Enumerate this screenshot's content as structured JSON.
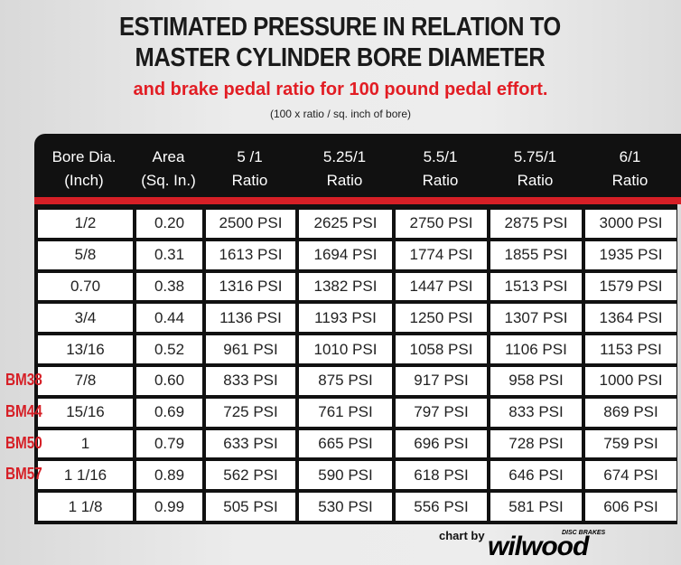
{
  "header": {
    "title_lines": [
      "ESTIMATED PRESSURE IN RELATION TO",
      "MASTER CYLINDER BORE DIAMETER"
    ],
    "subtitle": "and brake pedal ratio for 100 pound pedal effort.",
    "note": "(100 x ratio / sq. inch of bore)"
  },
  "table": {
    "columns": [
      [
        "Bore Dia.",
        "(Inch)"
      ],
      [
        "Area",
        "(Sq. In.)"
      ],
      [
        "5 /1",
        "Ratio"
      ],
      [
        "5.25/1",
        "Ratio"
      ],
      [
        "5.5/1",
        "Ratio"
      ],
      [
        "5.75/1",
        "Ratio"
      ],
      [
        "6/1",
        "Ratio"
      ]
    ],
    "rows": [
      {
        "cells": [
          "1/2",
          "0.20",
          "2500 PSI",
          "2625 PSI",
          "2750 PSI",
          "2875 PSI",
          "3000 PSI"
        ]
      },
      {
        "cells": [
          "5/8",
          "0.31",
          "1613 PSI",
          "1694 PSI",
          "1774 PSI",
          "1855 PSI",
          "1935 PSI"
        ]
      },
      {
        "cells": [
          "0.70",
          "0.38",
          "1316 PSI",
          "1382 PSI",
          "1447 PSI",
          "1513 PSI",
          "1579 PSI"
        ]
      },
      {
        "cells": [
          "3/4",
          "0.44",
          "1136 PSI",
          "1193 PSI",
          "1250 PSI",
          "1307 PSI",
          "1364 PSI"
        ]
      },
      {
        "cells": [
          "13/16",
          "0.52",
          "961 PSI",
          "1010 PSI",
          "1058 PSI",
          "1106 PSI",
          "1153 PSI"
        ]
      },
      {
        "tag": "BM38",
        "cells": [
          "7/8",
          "0.60",
          "833 PSI",
          "875 PSI",
          "917 PSI",
          "958 PSI",
          "1000 PSI"
        ]
      },
      {
        "tag": "BM44",
        "cells": [
          "15/16",
          "0.69",
          "725 PSI",
          "761 PSI",
          "797 PSI",
          "833 PSI",
          "869 PSI"
        ]
      },
      {
        "tag": "BM50",
        "cells": [
          "1",
          "0.79",
          "633 PSI",
          "665 PSI",
          "696 PSI",
          "728 PSI",
          "759 PSI"
        ]
      },
      {
        "tag": "BM57",
        "cells": [
          "1 1/16",
          "0.89",
          "562 PSI",
          "590 PSI",
          "618 PSI",
          "646 PSI",
          "674 PSI"
        ]
      },
      {
        "cells": [
          "1 1/8",
          "0.99",
          "505 PSI",
          "530 PSI",
          "556 PSI",
          "581 PSI",
          "606 PSI"
        ]
      }
    ]
  },
  "footer": {
    "credit": "chart by",
    "brand": "wilwood",
    "brand_sub": "DISC BRAKES"
  }
}
